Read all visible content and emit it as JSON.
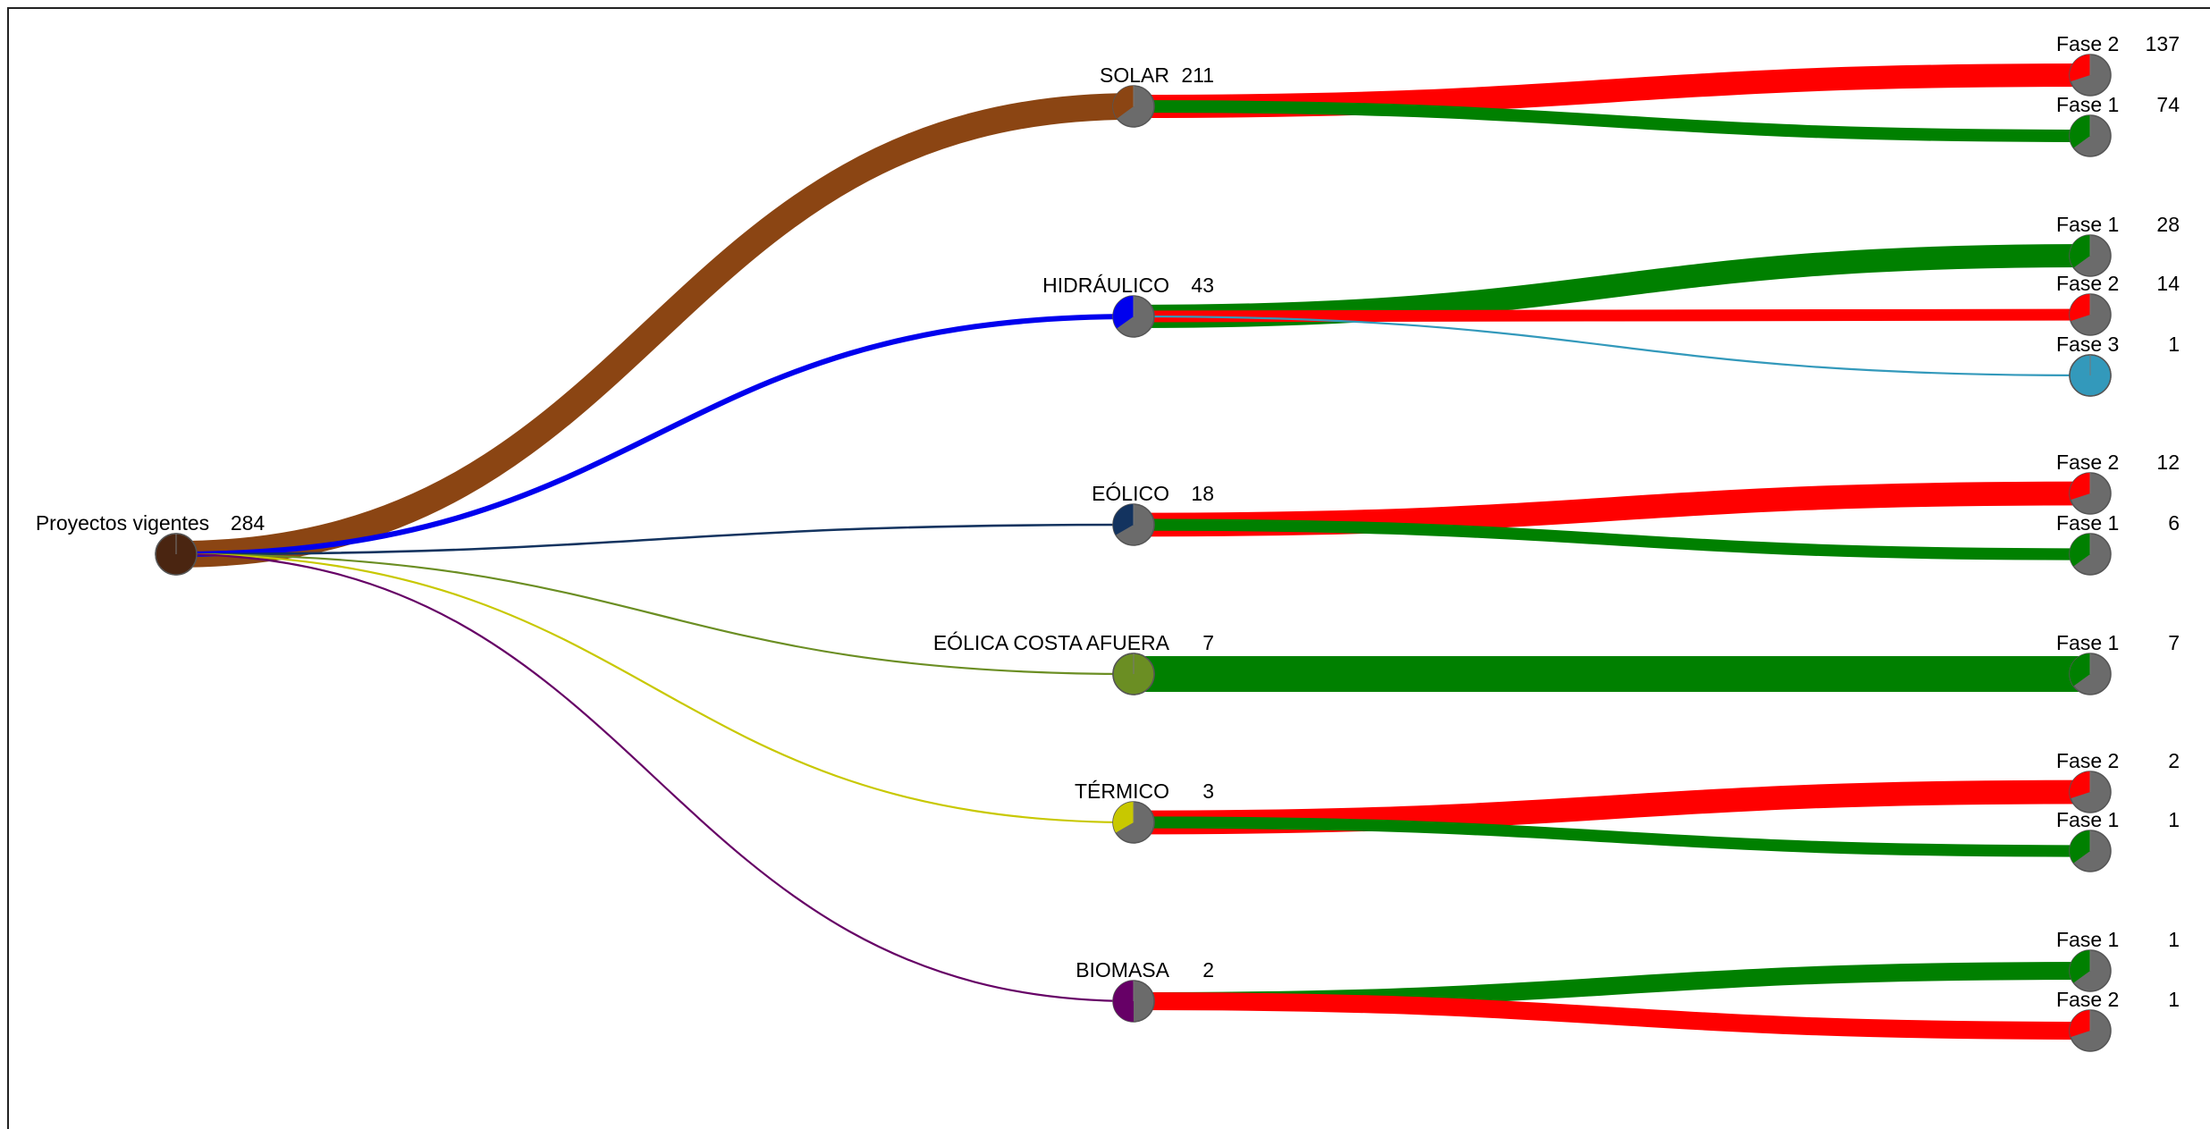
{
  "chart_data": {
    "type": "tree",
    "root": {
      "label": "Proyectos vigentes",
      "value": 284,
      "color": "#4a2511"
    },
    "categories": [
      {
        "label": "SOLAR",
        "value": 211,
        "color": "#8b4513",
        "children": [
          {
            "label": "Fase 2",
            "value": 137
          },
          {
            "label": "Fase 1",
            "value": 74
          }
        ]
      },
      {
        "label": "HIDRÁULICO",
        "value": 43,
        "color": "#0000ee",
        "children": [
          {
            "label": "Fase 1",
            "value": 28
          },
          {
            "label": "Fase 2",
            "value": 14
          },
          {
            "label": "Fase 3",
            "value": 1
          }
        ]
      },
      {
        "label": "EÓLICO",
        "value": 18,
        "color": "#13335f",
        "children": [
          {
            "label": "Fase 2",
            "value": 12
          },
          {
            "label": "Fase 1",
            "value": 6
          }
        ]
      },
      {
        "label": "EÓLICA COSTA AFUERA",
        "value": 7,
        "color": "#6b8e23",
        "children": [
          {
            "label": "Fase 1",
            "value": 7
          }
        ]
      },
      {
        "label": "TÉRMICO",
        "value": 3,
        "color": "#c8c800",
        "children": [
          {
            "label": "Fase 2",
            "value": 2
          },
          {
            "label": "Fase 1",
            "value": 1
          }
        ]
      },
      {
        "label": "BIOMASA",
        "value": 2,
        "color": "#660066",
        "children": [
          {
            "label": "Fase 1",
            "value": 1
          },
          {
            "label": "Fase 2",
            "value": 1
          }
        ]
      }
    ],
    "phase_colors": {
      "Fase 1": "#008000",
      "Fase 2": "#ff0000",
      "Fase 3": "#3399bb"
    },
    "node_background": "#6b6b6b"
  }
}
